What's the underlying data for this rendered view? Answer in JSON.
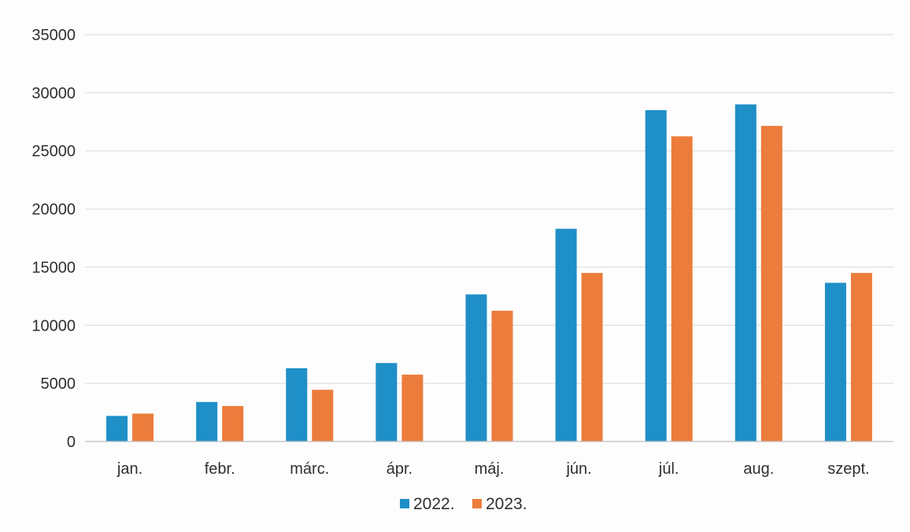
{
  "chart_data": {
    "type": "bar",
    "categories": [
      "jan.",
      "febr.",
      "márc.",
      "ápr.",
      "máj.",
      "jún.",
      "júl.",
      "aug.",
      "szept."
    ],
    "series": [
      {
        "name": "2022.",
        "color": "#1f8fc7",
        "values": [
          2200,
          3400,
          6300,
          6750,
          12650,
          18300,
          28500,
          29000,
          13650
        ]
      },
      {
        "name": "2023.",
        "color": "#ec7c3c",
        "values": [
          2400,
          3050,
          4450,
          5750,
          11250,
          14500,
          26250,
          27150,
          14500
        ]
      }
    ],
    "y_ticks": [
      "0",
      "5000",
      "10000",
      "15000",
      "20000",
      "25000",
      "30000",
      "35000"
    ],
    "ylim": [
      0,
      35000
    ],
    "grid": true,
    "legend_position": "bottom",
    "title": "",
    "xlabel": "",
    "ylabel": ""
  }
}
